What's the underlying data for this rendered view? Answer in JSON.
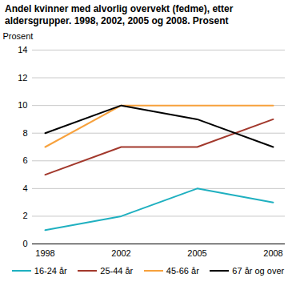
{
  "chart_data": {
    "type": "line",
    "title": "Andel kvinner med alvorlig overvekt (fedme), etter aldersgrupper. 1998, 2002, 2005 og 2008. Prosent",
    "y_label": "Prosent",
    "categories": [
      "1998",
      "2002",
      "2005",
      "2008"
    ],
    "series": [
      {
        "name": "16-24 år",
        "color": "#1fb0c0",
        "values": [
          1,
          2,
          4,
          3
        ]
      },
      {
        "name": "25-44 år",
        "color": "#a2382c",
        "values": [
          5,
          7,
          7,
          9
        ]
      },
      {
        "name": "45-66 år",
        "color": "#f7a13c",
        "values": [
          7,
          10,
          10,
          10
        ]
      },
      {
        "name": "67 år og over",
        "color": "#000000",
        "values": [
          8,
          10,
          9,
          7
        ]
      }
    ],
    "ylim": [
      0,
      14
    ],
    "yticks": [
      0,
      2,
      4,
      6,
      8,
      10,
      12,
      14
    ],
    "grid": true,
    "legend": "bottom"
  }
}
